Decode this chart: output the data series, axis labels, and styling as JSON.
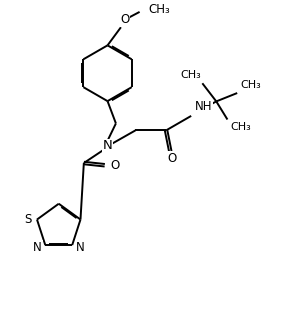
{
  "bg_color": "#ffffff",
  "line_color": "#000000",
  "lw": 1.4,
  "fs": 8.5,
  "figsize": [
    2.82,
    3.2
  ],
  "dpi": 100,
  "xlim": [
    0,
    10
  ],
  "ylim": [
    0,
    11.3
  ]
}
